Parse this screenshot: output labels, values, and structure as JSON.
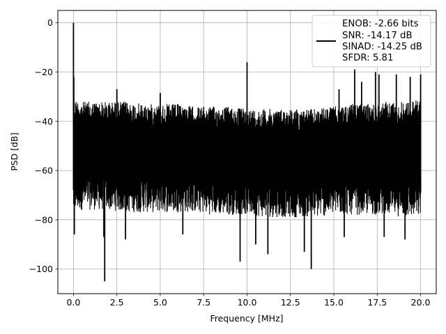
{
  "chart_data": {
    "type": "line",
    "title": "",
    "xlabel": "Frequency [MHz]",
    "ylabel": "PSD [dB]",
    "xlim": [
      -0.9,
      20.9
    ],
    "ylim": [
      -110,
      5
    ],
    "xticks": [
      0.0,
      2.5,
      5.0,
      7.5,
      10.0,
      12.5,
      15.0,
      17.5,
      20.0
    ],
    "xtick_labels": [
      "0.0",
      "2.5",
      "5.0",
      "7.5",
      "10.0",
      "12.5",
      "15.0",
      "17.5",
      "20.0"
    ],
    "yticks": [
      0,
      -20,
      -40,
      -60,
      -80,
      -100
    ],
    "ytick_labels": [
      "0",
      "−20",
      "−40",
      "−60",
      "−80",
      "−100"
    ],
    "grid": true,
    "legend_position": "top-right",
    "legend_entries": [
      "ENOB: -2.66 bits",
      "SNR: -14.17 dB",
      "SINAD: -14.25 dB",
      "SFDR: 5.81"
    ],
    "line_color": "#000000",
    "series": [
      {
        "envelope": {
          "x": [
            0.0,
            0.1,
            0.5,
            1.0,
            2.0,
            3.0,
            4.0,
            5.0,
            6.0,
            7.0,
            8.0,
            9.0,
            10.0,
            11.0,
            12.0,
            13.0,
            14.0,
            15.0,
            16.0,
            17.0,
            18.0,
            19.0,
            20.0
          ],
          "upper": [
            -30,
            -31,
            -32,
            -32,
            -32,
            -32,
            -33,
            -33,
            -33,
            -34,
            -34,
            -34,
            -35,
            -35,
            -35,
            -35,
            -35,
            -34,
            -33,
            -33,
            -32,
            -32,
            -31
          ],
          "lower": [
            -78,
            -77,
            -76,
            -76,
            -76,
            -77,
            -77,
            -77,
            -77,
            -77,
            -78,
            -78,
            -78,
            -79,
            -79,
            -79,
            -79,
            -78,
            -78,
            -78,
            -78,
            -79,
            -79
          ],
          "floor_mean": -55
        },
        "peaks": [
          {
            "x": 0.0,
            "y": 0
          },
          {
            "x": 0.02,
            "y": -22
          },
          {
            "x": 2.5,
            "y": -27
          },
          {
            "x": 5.0,
            "y": -28.5
          },
          {
            "x": 10.0,
            "y": -16
          },
          {
            "x": 15.3,
            "y": -27
          },
          {
            "x": 16.2,
            "y": -19
          },
          {
            "x": 16.6,
            "y": -24
          },
          {
            "x": 17.4,
            "y": -20
          },
          {
            "x": 17.6,
            "y": -21
          },
          {
            "x": 18.6,
            "y": -21
          },
          {
            "x": 19.4,
            "y": -22
          },
          {
            "x": 20.0,
            "y": -21
          }
        ],
        "dips": [
          {
            "x": 0.05,
            "y": -86
          },
          {
            "x": 1.75,
            "y": -87
          },
          {
            "x": 1.8,
            "y": -105
          },
          {
            "x": 3.0,
            "y": -88
          },
          {
            "x": 6.3,
            "y": -86
          },
          {
            "x": 9.6,
            "y": -97
          },
          {
            "x": 10.5,
            "y": -90
          },
          {
            "x": 11.2,
            "y": -94
          },
          {
            "x": 13.3,
            "y": -93
          },
          {
            "x": 13.7,
            "y": -100
          },
          {
            "x": 15.6,
            "y": -87
          },
          {
            "x": 17.9,
            "y": -87
          },
          {
            "x": 19.1,
            "y": -88
          }
        ]
      }
    ]
  }
}
